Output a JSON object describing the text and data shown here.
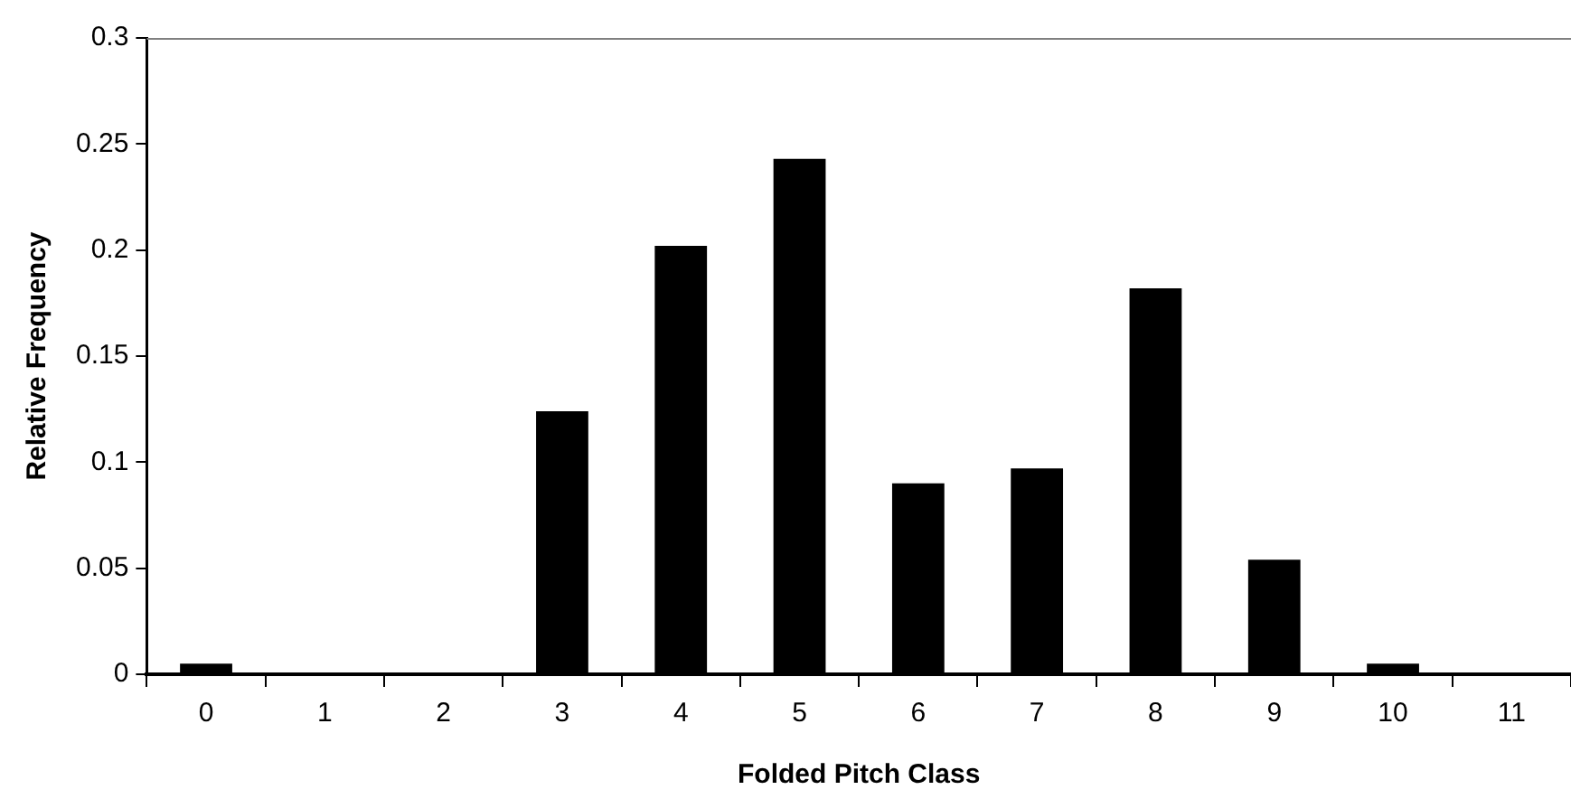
{
  "chart_data": {
    "type": "bar",
    "xlabel": "Folded Pitch Class",
    "ylabel": "Relative Frequency",
    "categories": [
      "0",
      "1",
      "2",
      "3",
      "4",
      "5",
      "6",
      "7",
      "8",
      "9",
      "10",
      "11"
    ],
    "values": [
      0.005,
      0,
      0,
      0.124,
      0.202,
      0.243,
      0.09,
      0.097,
      0.182,
      0.054,
      0.005,
      0
    ],
    "color": "#000000",
    "ylim": [
      0,
      0.3
    ],
    "yticks": [
      0,
      0.05,
      0.1,
      0.15,
      0.2,
      0.25,
      0.3
    ],
    "grid": false,
    "legend": false
  }
}
